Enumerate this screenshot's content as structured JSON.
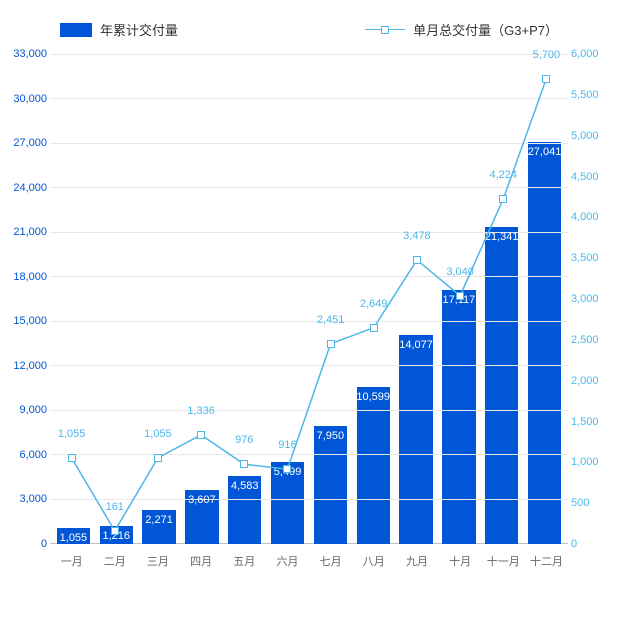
{
  "chart": {
    "type": "bar+line",
    "background_color": "#ffffff",
    "grid_color": "#e8e8e8",
    "legend": {
      "bar_label": "年累计交付量",
      "line_label": "单月总交付量（G3+P7）"
    },
    "categories": [
      "一月",
      "二月",
      "三月",
      "四月",
      "五月",
      "六月",
      "七月",
      "八月",
      "九月",
      "十月",
      "十一月",
      "十二月"
    ],
    "bar_series": {
      "color": "#0056d6",
      "values": [
        1055,
        1216,
        2271,
        3607,
        4583,
        5499,
        7950,
        10599,
        14077,
        17117,
        21341,
        27041
      ],
      "labels": [
        "1,055",
        "1,216",
        "2,271",
        "3,607",
        "4,583",
        "5,499",
        "7,950",
        "10,599",
        "14,077",
        "17,117",
        "21,341",
        "27,041"
      ],
      "bar_width_ratio": 0.78,
      "label_color": "#ffffff",
      "label_fontsize": 11
    },
    "line_series": {
      "color": "#4db8e8",
      "marker_fill": "#ffffff",
      "marker_shape": "square",
      "marker_size": 8,
      "line_width": 1.5,
      "values": [
        1055,
        161,
        1055,
        1336,
        976,
        916,
        2451,
        2649,
        3478,
        3040,
        4224,
        5700
      ],
      "labels": [
        "1,055",
        "161",
        "1,055",
        "1,336",
        "976",
        "916",
        "2,451",
        "2,649",
        "3,478",
        "3,040",
        "4,224",
        "5,700"
      ],
      "label_fontsize": 11
    },
    "y_left": {
      "min": 0,
      "max": 33000,
      "tick_step": 3000,
      "tick_labels": [
        "0",
        "3,000",
        "6,000",
        "9,000",
        "12,000",
        "15,000",
        "18,000",
        "21,000",
        "24,000",
        "27,000",
        "30,000",
        "33,000"
      ],
      "color": "#0056d6",
      "fontsize": 11
    },
    "y_right": {
      "min": 0,
      "max": 6000,
      "tick_step": 500,
      "tick_labels": [
        "0",
        "500",
        "1,000",
        "1,500",
        "2,000",
        "2,500",
        "3,000",
        "3,500",
        "4,000",
        "4,500",
        "5,000",
        "5,500",
        "6,000"
      ],
      "color": "#4db8e8",
      "fontsize": 11
    },
    "x_axis": {
      "color": "#666666",
      "fontsize": 11
    }
  }
}
